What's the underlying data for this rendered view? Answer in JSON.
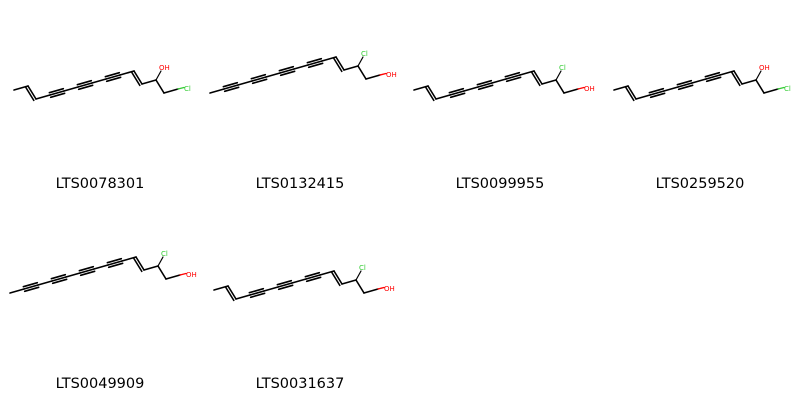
{
  "colors": {
    "bond": "#000000",
    "oxygen": "#ff0000",
    "chlorine": "#33cc33"
  },
  "molecules": [
    {
      "id": "LTS0078301",
      "variant": "dienyne",
      "branch": "OH",
      "terminal": "Cl"
    },
    {
      "id": "LTS0132415",
      "variant": "methyl-yne",
      "branch": "Cl",
      "terminal": "OH"
    },
    {
      "id": "LTS0099955",
      "variant": "dienyne",
      "branch": "Cl",
      "terminal": "OH"
    },
    {
      "id": "LTS0259520",
      "variant": "dienyne",
      "branch": "OH",
      "terminal": "Cl"
    },
    {
      "id": "LTS0049909",
      "variant": "methyl-yne",
      "branch": "Cl",
      "terminal": "OH"
    },
    {
      "id": "LTS0031637",
      "variant": "dienyne",
      "branch": "Cl",
      "terminal": "OH"
    }
  ]
}
